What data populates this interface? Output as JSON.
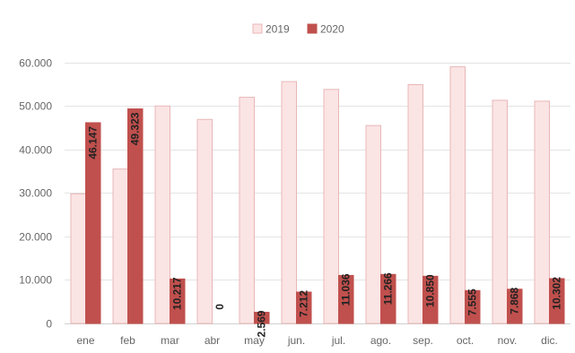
{
  "chart_data": {
    "type": "bar",
    "categories": [
      "ene",
      "feb",
      "mar",
      "abr",
      "may",
      "jun.",
      "jul.",
      "ago.",
      "sep.",
      "oct.",
      "nov.",
      "dic."
    ],
    "series": [
      {
        "name": "2019",
        "values": [
          29800,
          35500,
          50000,
          46900,
          52000,
          55600,
          53800,
          45500,
          54900,
          59000,
          51300,
          51100
        ],
        "color": "#fbe4e4",
        "stroke": "#e8b7b7"
      },
      {
        "name": "2020",
        "values": [
          46147,
          49323,
          10217,
          0,
          2569,
          7212,
          11036,
          11266,
          10850,
          7555,
          7868,
          10302
        ],
        "color": "#c0504d",
        "stroke": "#c0504d"
      }
    ],
    "data_labels": [
      "46.147",
      "49.323",
      "10.217",
      "0",
      "2.569",
      "7.212",
      "11.036",
      "11.266",
      "10.850",
      "7.555",
      "7.868",
      "10.302"
    ],
    "y_ticks": [
      0,
      10000,
      20000,
      30000,
      40000,
      50000,
      60000
    ],
    "y_tick_labels": [
      "0",
      "10.000",
      "20.000",
      "30.000",
      "40.000",
      "50.000",
      "60.000"
    ],
    "ylim": [
      0,
      62000
    ],
    "legend_position": "top-center",
    "grid": true
  }
}
